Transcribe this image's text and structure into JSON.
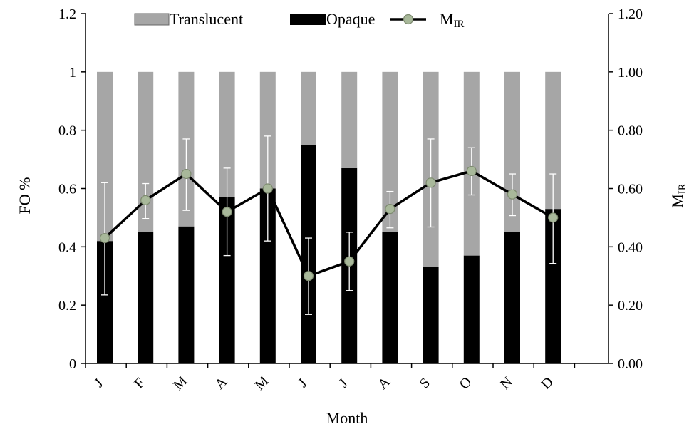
{
  "chart_data": {
    "type": "bar",
    "stacked": true,
    "categories": [
      "J",
      "F",
      "M",
      "A",
      "M",
      "J",
      "J",
      "A",
      "S",
      "O",
      "N",
      "D"
    ],
    "series": [
      {
        "name": "Opaque",
        "kind": "bar",
        "axis": "left",
        "color": "#000000",
        "values": [
          0.42,
          0.45,
          0.47,
          0.57,
          0.6,
          0.75,
          0.67,
          0.45,
          0.33,
          0.37,
          0.45,
          0.53
        ]
      },
      {
        "name": "Translucent",
        "kind": "bar",
        "axis": "left",
        "color": "#a6a6a6",
        "values": [
          0.58,
          0.55,
          0.53,
          0.43,
          0.4,
          0.25,
          0.33,
          0.55,
          0.67,
          0.63,
          0.55,
          0.47
        ]
      }
    ],
    "line": {
      "name_main": "M",
      "name_sub": "IR",
      "axis": "right",
      "color": "#000000",
      "marker_color": "#a8b89a",
      "values": [
        0.43,
        0.56,
        0.65,
        0.52,
        0.6,
        0.3,
        0.35,
        0.53,
        0.62,
        0.66,
        0.58,
        0.5
      ],
      "error_low": [
        0.235,
        0.497,
        0.525,
        0.37,
        0.42,
        0.168,
        0.25,
        0.465,
        0.468,
        0.578,
        0.507,
        0.343
      ],
      "error_high": [
        0.62,
        0.617,
        0.77,
        0.67,
        0.78,
        0.43,
        0.45,
        0.59,
        0.77,
        0.74,
        0.65,
        0.65
      ]
    },
    "xlabel": "Month",
    "ylabel_left": "FO %",
    "ylabel_right_main": "M",
    "ylabel_right_sub": "IR",
    "ylim": [
      0,
      1.2
    ],
    "yticks_left": [
      "0",
      "0.2",
      "0.4",
      "0.6",
      "0.8",
      "1",
      "1.2"
    ],
    "yticks_right": [
      "0.00",
      "0.20",
      "0.40",
      "0.60",
      "0.80",
      "1.00",
      "1.20"
    ],
    "grid": false,
    "legend": {
      "position": "top-center",
      "order": [
        "Translucent",
        "Opaque",
        "line"
      ]
    }
  }
}
